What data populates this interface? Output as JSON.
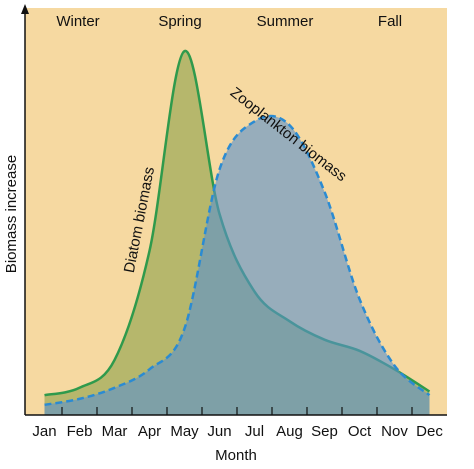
{
  "chart_data": {
    "type": "area",
    "xlabel": "Month",
    "ylabel": "Biomass increase",
    "seasons": [
      "Winter",
      "Spring",
      "Summer",
      "Fall"
    ],
    "categories": [
      "Jan",
      "Feb",
      "Mar",
      "Apr",
      "May",
      "Jun",
      "Jul",
      "Aug",
      "Sep",
      "Oct",
      "Nov",
      "Dec"
    ],
    "ylim": [
      0,
      100
    ],
    "series": [
      {
        "name": "Diatom biomass",
        "color": "#2f9a4c",
        "fill": "#8ea24c",
        "dashed": false,
        "values": [
          4,
          6,
          13.5,
          43,
          97,
          53,
          32,
          24,
          19,
          16,
          11,
          5
        ]
      },
      {
        "name": "Zooplankton biomass",
        "color": "#2b8bd2",
        "fill": "#5c92cc",
        "dashed": true,
        "values": [
          1.4,
          3,
          6,
          11,
          22,
          65,
          78,
          77,
          59,
          30,
          12,
          4
        ]
      }
    ]
  }
}
